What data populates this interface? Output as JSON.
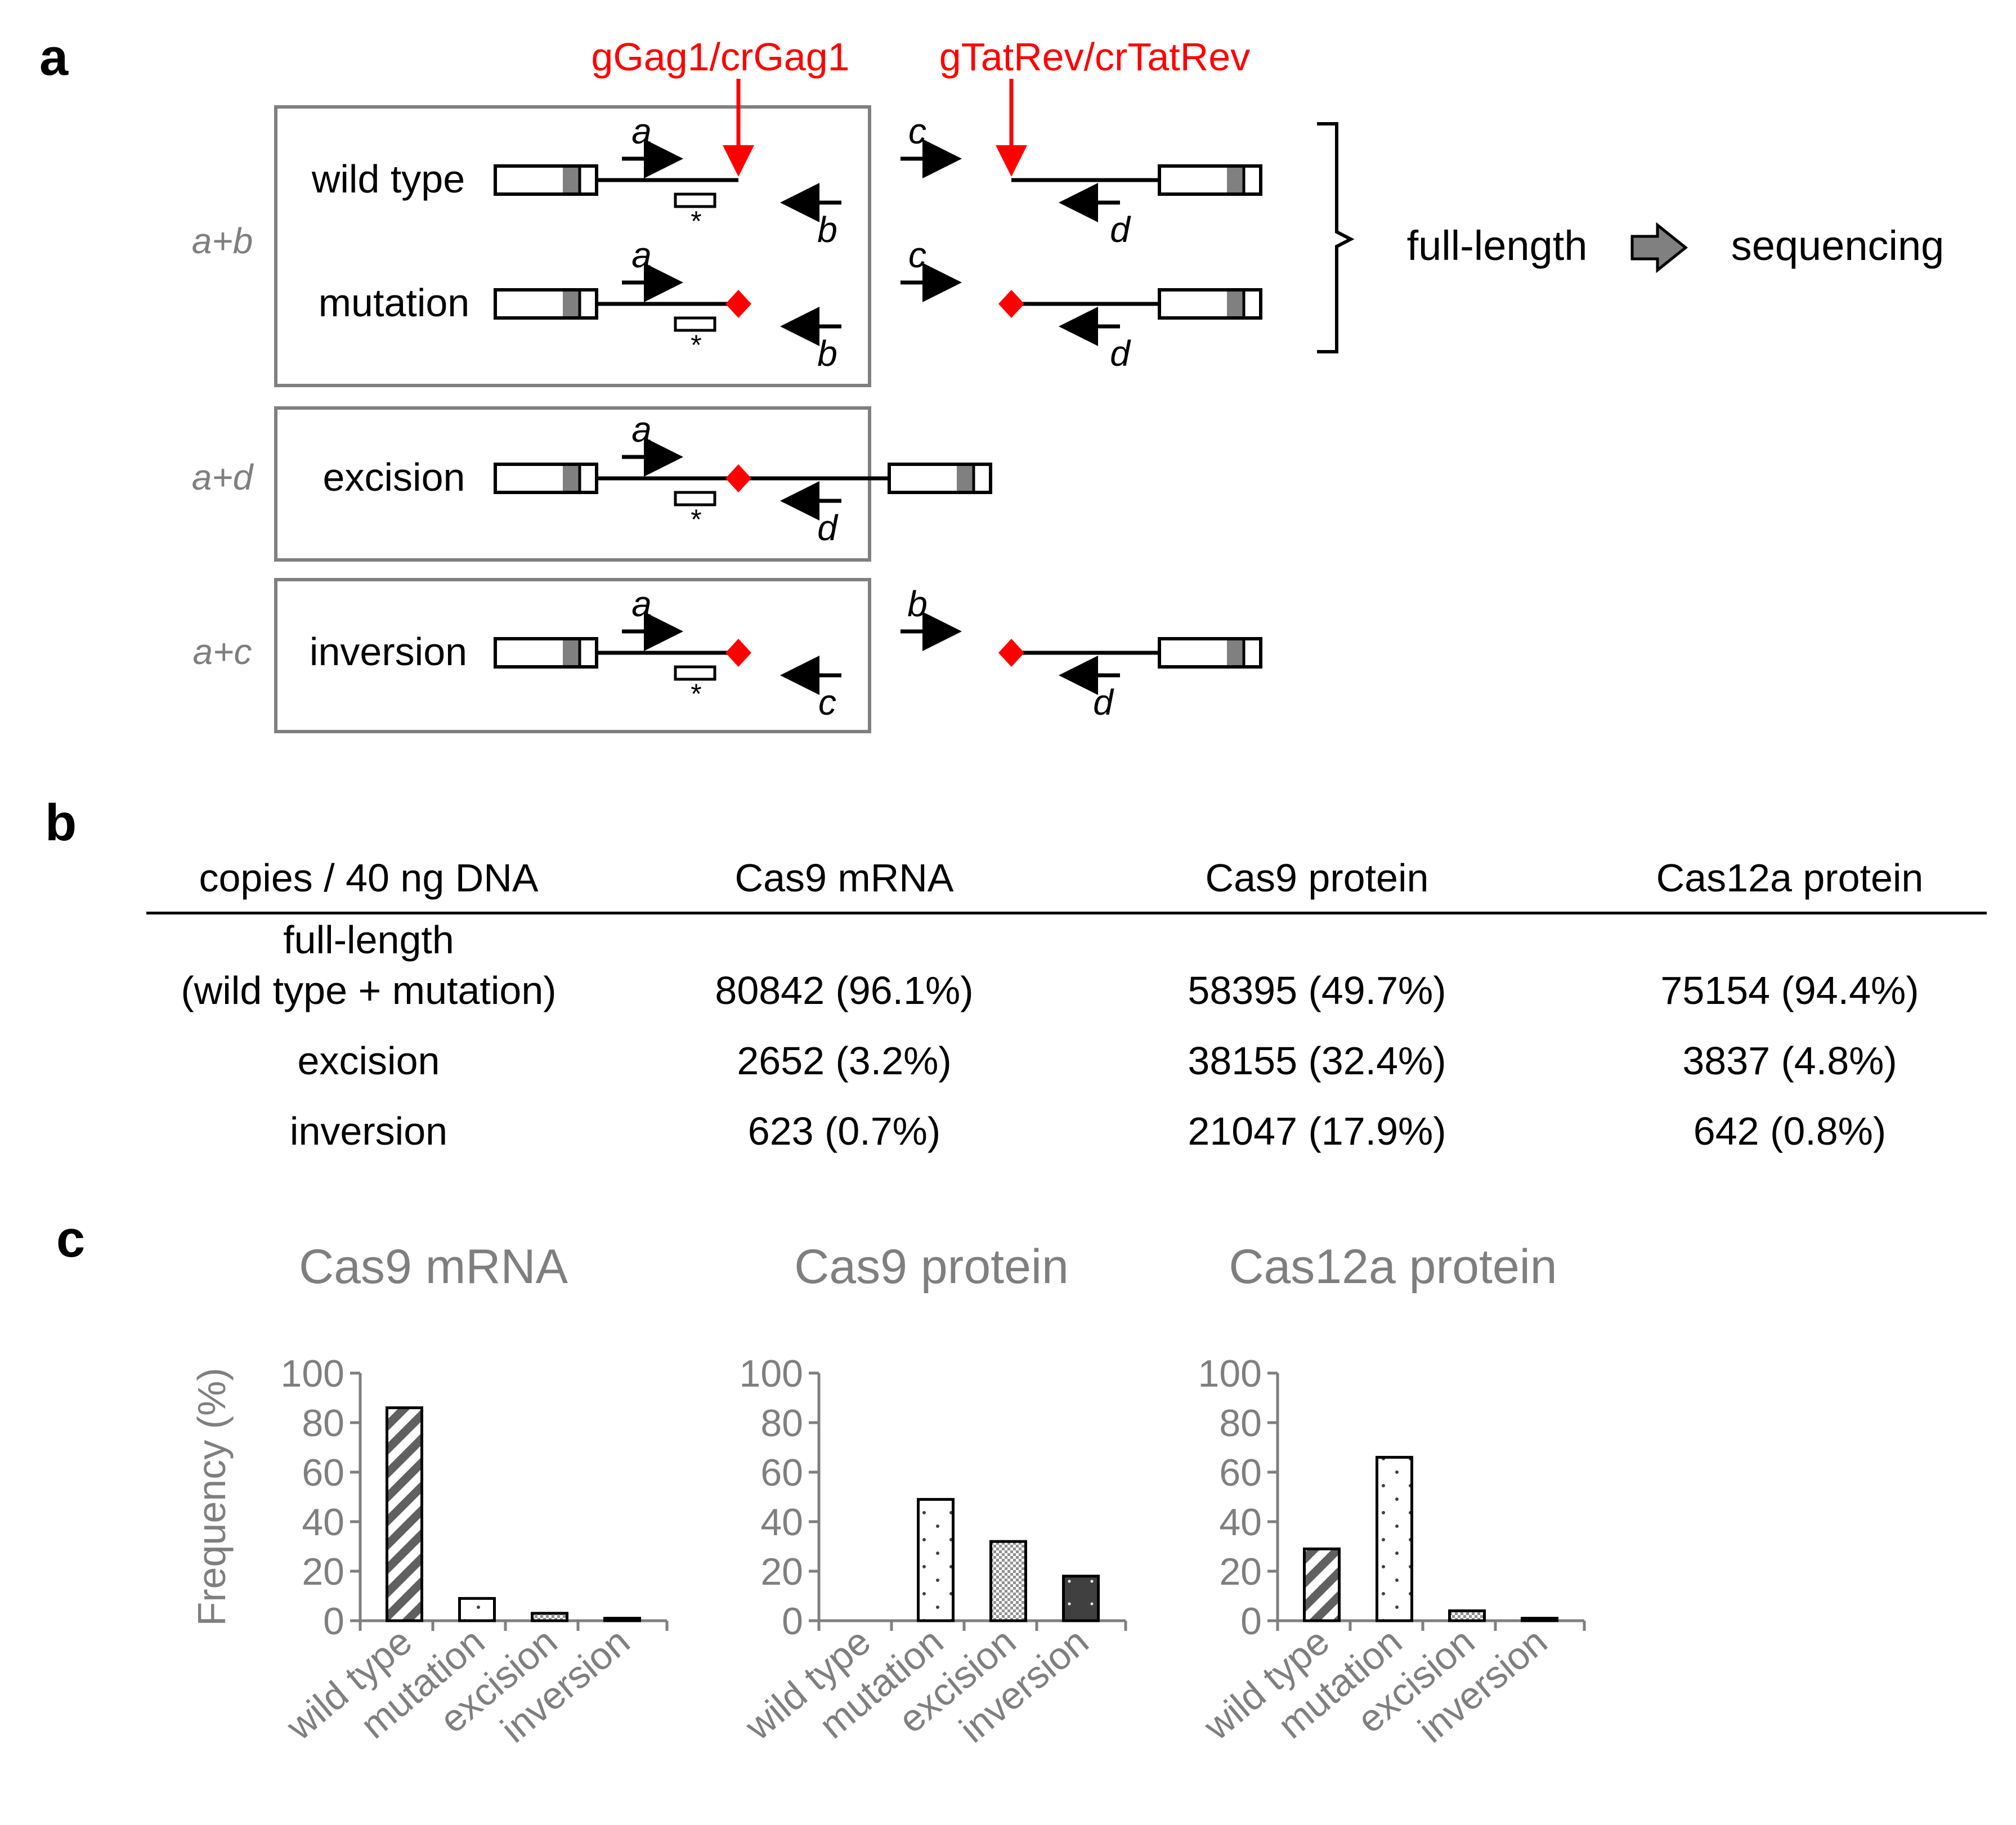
{
  "panels": {
    "a": "a",
    "b": "b",
    "c": "c"
  },
  "colors": {
    "accent_red": "#ff0000",
    "gray_text": "#7f7f7f",
    "box_gray": "#7f7f7f",
    "dark_bar": "#404040"
  },
  "panel_a": {
    "guides": {
      "left": "gGag1/crGag1",
      "right": "gTatRev/crTatRev"
    },
    "group_labels": {
      "ab": "a+b",
      "ad": "a+d",
      "ac": "a+c"
    },
    "rows": {
      "wild_type": "wild type",
      "mutation": "mutation",
      "excision": "excision",
      "inversion": "inversion"
    },
    "primers": {
      "a": "a",
      "b": "b",
      "c": "c",
      "d": "d"
    },
    "asterisk": "*",
    "full_length": "full-length",
    "sequencing": "sequencing"
  },
  "table": {
    "header": [
      "copies / 40 ng DNA",
      "Cas9 mRNA",
      "Cas9 protein",
      "Cas12a protein"
    ],
    "rows": [
      {
        "label_line1": "full-length",
        "label_line2": "(wild type + mutation)",
        "values": [
          "80842 (96.1%)",
          "58395 (49.7%)",
          "75154 (94.4%)"
        ]
      },
      {
        "label": "excision",
        "values": [
          "2652 (3.2%)",
          "38155 (32.4%)",
          "3837 (4.8%)"
        ]
      },
      {
        "label": "inversion",
        "values": [
          "623 (0.7%)",
          "21047 (17.9%)",
          "642 (0.8%)"
        ]
      }
    ]
  },
  "chart_data": [
    {
      "type": "bar",
      "title": "Cas9 mRNA",
      "ylabel": "Frequency (%)",
      "ylim": [
        0,
        100
      ],
      "yticks": [
        "0",
        "20",
        "40",
        "60",
        "80",
        "100"
      ],
      "categories": [
        "wild type",
        "mutation",
        "excision",
        "inversion"
      ],
      "values": [
        86,
        9,
        3,
        1
      ]
    },
    {
      "type": "bar",
      "title": "Cas9 protein",
      "ylim": [
        0,
        100
      ],
      "yticks": [
        "0",
        "20",
        "40",
        "60",
        "80",
        "100"
      ],
      "categories": [
        "wild type",
        "mutation",
        "excision",
        "inversion"
      ],
      "values": [
        0,
        49,
        32,
        18
      ]
    },
    {
      "type": "bar",
      "title": "Cas12a protein",
      "ylim": [
        0,
        100
      ],
      "yticks": [
        "0",
        "20",
        "40",
        "60",
        "80",
        "100"
      ],
      "categories": [
        "wild type",
        "mutation",
        "excision",
        "inversion"
      ],
      "values": [
        29,
        66,
        4,
        1
      ]
    }
  ]
}
